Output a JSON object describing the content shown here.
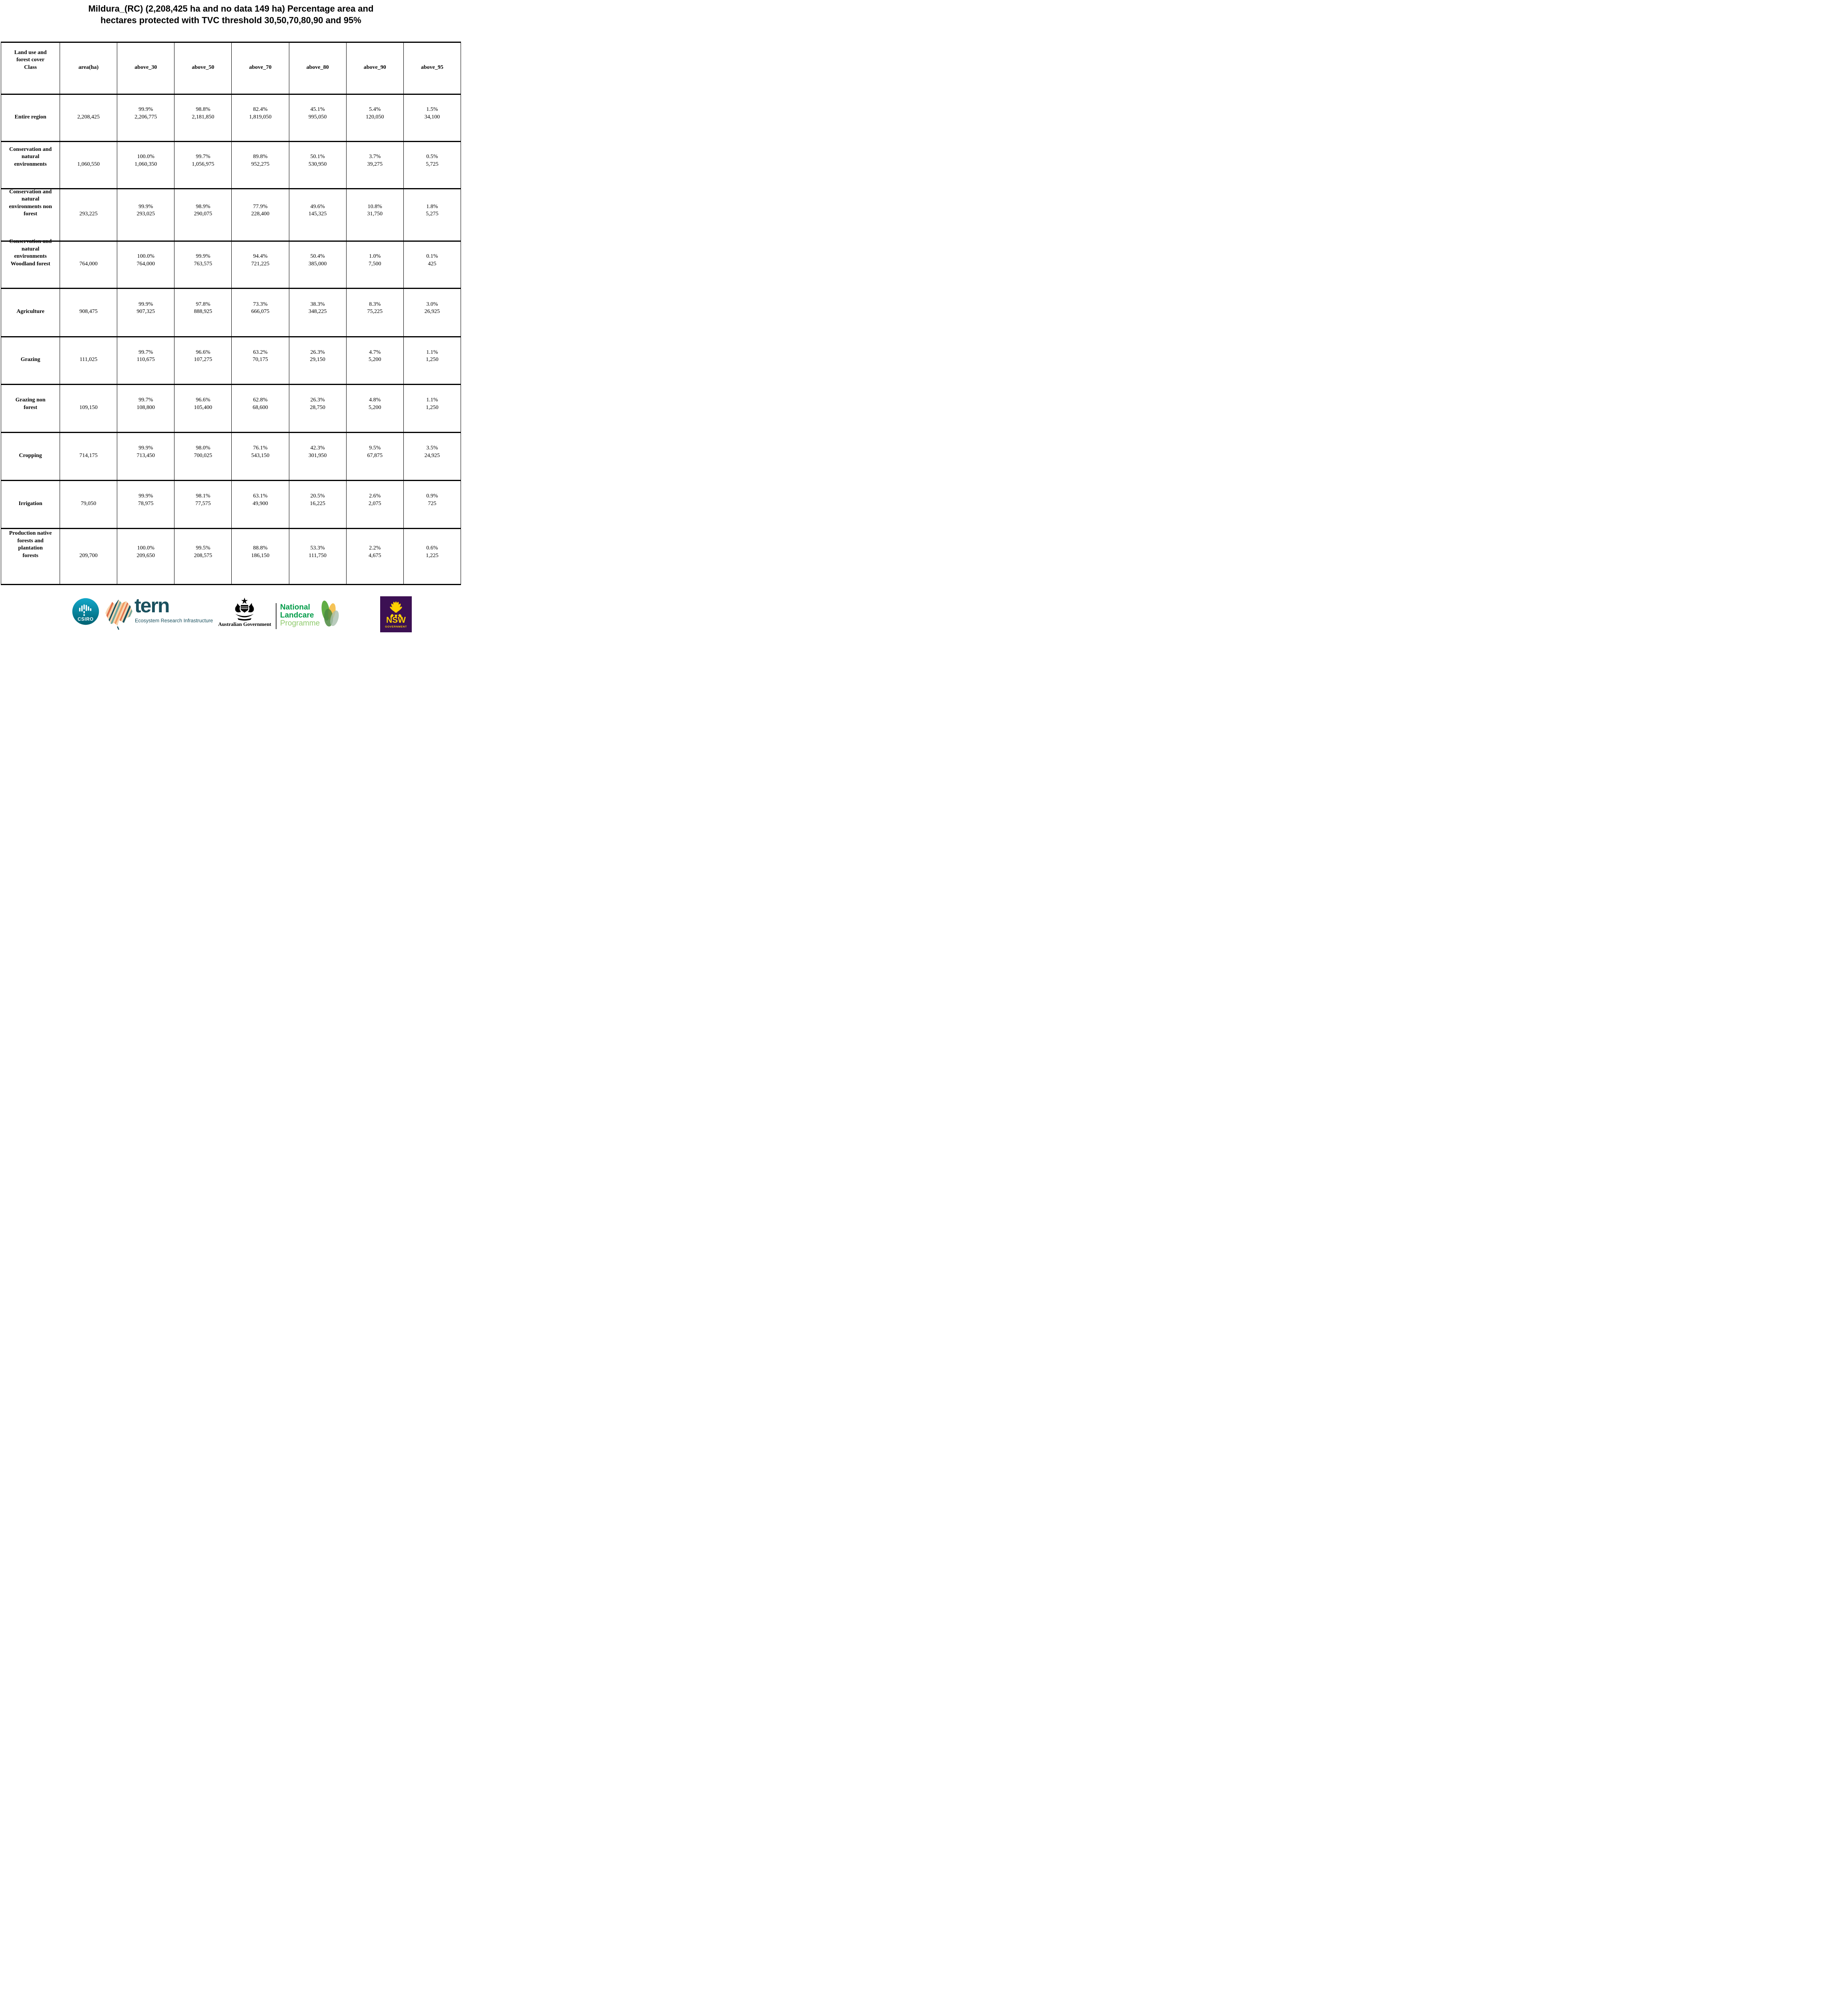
{
  "title": {
    "line1": "Mildura_(RC) (2,208,425 ha and no data 149 ha) Percentage area and",
    "line2": "hectares protected with TVC threshold 30,50,70,80,90 and 95%"
  },
  "table": {
    "columns": [
      "Land use and\nforest cover\nClass",
      "area(ha)",
      "above_30",
      "above_50",
      "above_70",
      "above_80",
      "above_90",
      "above_95"
    ],
    "rows": [
      {
        "label": "Entire region",
        "area": "2,208,425",
        "cells": [
          [
            "99.9%",
            "2,206,775"
          ],
          [
            "98.8%",
            "2,181,850"
          ],
          [
            "82.4%",
            "1,819,050"
          ],
          [
            "45.1%",
            "995,050"
          ],
          [
            "5.4%",
            "120,050"
          ],
          [
            "1.5%",
            "34,100"
          ]
        ]
      },
      {
        "label": "Conservation and\nnatural\nenvironments",
        "area": "1,060,550",
        "cells": [
          [
            "100.0%",
            "1,060,350"
          ],
          [
            "99.7%",
            "1,056,975"
          ],
          [
            "89.8%",
            "952,275"
          ],
          [
            "50.1%",
            "530,950"
          ],
          [
            "3.7%",
            "39,275"
          ],
          [
            "0.5%",
            "5,725"
          ]
        ]
      },
      {
        "label": "Conservation and\nnatural\nenvironments non\nforest",
        "area": "293,225",
        "cells": [
          [
            "99.9%",
            "293,025"
          ],
          [
            "98.9%",
            "290,075"
          ],
          [
            "77.9%",
            "228,400"
          ],
          [
            "49.6%",
            "145,325"
          ],
          [
            "10.8%",
            "31,750"
          ],
          [
            "1.8%",
            "5,275"
          ]
        ]
      },
      {
        "label": "Conservation and\nnatural\nenvironments\nWoodland forest",
        "area": "764,000",
        "cells": [
          [
            "100.0%",
            "764,000"
          ],
          [
            "99.9%",
            "763,575"
          ],
          [
            "94.4%",
            "721,225"
          ],
          [
            "50.4%",
            "385,000"
          ],
          [
            "1.0%",
            "7,500"
          ],
          [
            "0.1%",
            "425"
          ]
        ]
      },
      {
        "label": "Agriculture",
        "area": "908,475",
        "cells": [
          [
            "99.9%",
            "907,325"
          ],
          [
            "97.8%",
            "888,925"
          ],
          [
            "73.3%",
            "666,075"
          ],
          [
            "38.3%",
            "348,225"
          ],
          [
            "8.3%",
            "75,225"
          ],
          [
            "3.0%",
            "26,925"
          ]
        ]
      },
      {
        "label": "Grazing",
        "area": "111,025",
        "cells": [
          [
            "99.7%",
            "110,675"
          ],
          [
            "96.6%",
            "107,275"
          ],
          [
            "63.2%",
            "70,175"
          ],
          [
            "26.3%",
            "29,150"
          ],
          [
            "4.7%",
            "5,200"
          ],
          [
            "1.1%",
            "1,250"
          ]
        ]
      },
      {
        "label": "Grazing non\nforest",
        "area": "109,150",
        "cells": [
          [
            "99.7%",
            "108,800"
          ],
          [
            "96.6%",
            "105,400"
          ],
          [
            "62.8%",
            "68,600"
          ],
          [
            "26.3%",
            "28,750"
          ],
          [
            "4.8%",
            "5,200"
          ],
          [
            "1.1%",
            "1,250"
          ]
        ]
      },
      {
        "label": "Cropping",
        "area": "714,175",
        "cells": [
          [
            "99.9%",
            "713,450"
          ],
          [
            "98.0%",
            "700,025"
          ],
          [
            "76.1%",
            "543,150"
          ],
          [
            "42.3%",
            "301,950"
          ],
          [
            "9.5%",
            "67,875"
          ],
          [
            "3.5%",
            "24,925"
          ]
        ]
      },
      {
        "label": "Irrigation",
        "area": "79,050",
        "cells": [
          [
            "99.9%",
            "78,975"
          ],
          [
            "98.1%",
            "77,575"
          ],
          [
            "63.1%",
            "49,900"
          ],
          [
            "20.5%",
            "16,225"
          ],
          [
            "2.6%",
            "2,075"
          ],
          [
            "0.9%",
            "725"
          ]
        ]
      },
      {
        "label": "Production native\nforests and\nplantation\nforests",
        "area": "209,700",
        "cells": [
          [
            "100.0%",
            "209,650"
          ],
          [
            "99.5%",
            "208,575"
          ],
          [
            "88.8%",
            "186,150"
          ],
          [
            "53.3%",
            "111,750"
          ],
          [
            "2.2%",
            "4,675"
          ],
          [
            "0.6%",
            "1,225"
          ]
        ]
      }
    ]
  },
  "footer": {
    "csiro": {
      "label": "CSIRO"
    },
    "tern": {
      "wordmark": "tern",
      "subtitle": "Ecosystem Research Infrastructure"
    },
    "ausgov": {
      "label": "Australian Government"
    },
    "landcare": {
      "line1": "National",
      "line2": "Landcare",
      "line3": "Programme"
    },
    "nsw": {
      "label": "NSW",
      "sublabel": "GOVERNMENT"
    }
  },
  "colors": {
    "csiro_teal_top": "#12a7c9",
    "csiro_teal_bottom": "#006272",
    "tern_dark_teal": "#1a505e",
    "tern_orange": "#e2714b",
    "tern_peach": "#f7d6b1",
    "tern_sage": "#6fa79c",
    "landcare_green": "#009b48",
    "landcare_light_green": "#8fca6c",
    "leaf_yellow": "#f2b42c",
    "nsw_purple": "#3c1053",
    "nsw_yellow": "#ffd200"
  }
}
